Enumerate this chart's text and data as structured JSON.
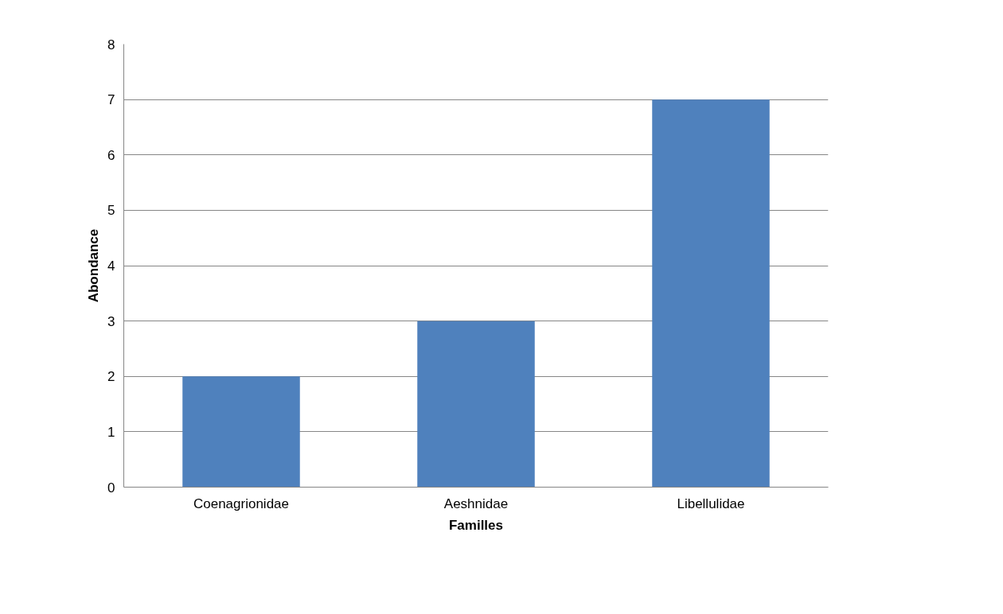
{
  "chart_data": {
    "type": "bar",
    "xlabel": "Familles",
    "ylabel": "Abondance",
    "categories": [
      "Coenagrionidae",
      "Aeshnidae",
      "Libellulidae"
    ],
    "values": [
      2,
      3,
      7
    ],
    "color": "#4f81bd",
    "ylim": [
      0,
      8
    ],
    "yticks": [
      0,
      1,
      2,
      3,
      4,
      5,
      6,
      7,
      8
    ],
    "grid": "y"
  }
}
